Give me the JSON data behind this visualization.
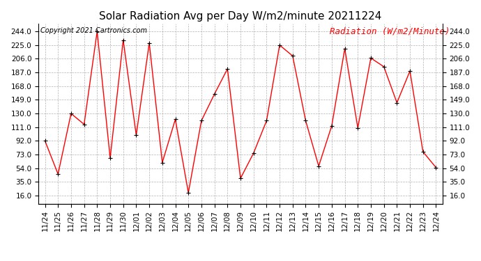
{
  "title": "Solar Radiation Avg per Day W/m2/minute 20211224",
  "copyright": "Copyright 2021 Cartronics.com",
  "legend_label": "Radiation (W/m2/Minute)",
  "dates": [
    "11/24",
    "11/25",
    "11/26",
    "11/27",
    "11/28",
    "11/29",
    "11/30",
    "12/01",
    "12/02",
    "12/03",
    "12/04",
    "12/05",
    "12/06",
    "12/07",
    "12/08",
    "12/09",
    "12/10",
    "12/11",
    "12/12",
    "12/13",
    "12/14",
    "12/15",
    "12/16",
    "12/17",
    "12/18",
    "12/19",
    "12/20",
    "12/21",
    "12/22",
    "12/23",
    "12/24"
  ],
  "values": [
    92,
    46,
    130,
    115,
    244,
    68,
    232,
    100,
    228,
    62,
    122,
    20,
    120,
    157,
    192,
    40,
    75,
    120,
    225,
    210,
    120,
    57,
    113,
    220,
    110,
    207,
    195,
    145,
    189,
    77,
    55
  ],
  "line_color": "red",
  "marker_color": "black",
  "background_color": "#ffffff",
  "grid_color": "#aaaaaa",
  "yticks": [
    16.0,
    35.0,
    54.0,
    73.0,
    92.0,
    111.0,
    130.0,
    149.0,
    168.0,
    187.0,
    206.0,
    225.0,
    244.0
  ],
  "ylim": [
    5,
    255
  ],
  "title_fontsize": 11,
  "copyright_fontsize": 7,
  "legend_fontsize": 9,
  "tick_fontsize": 7.5
}
